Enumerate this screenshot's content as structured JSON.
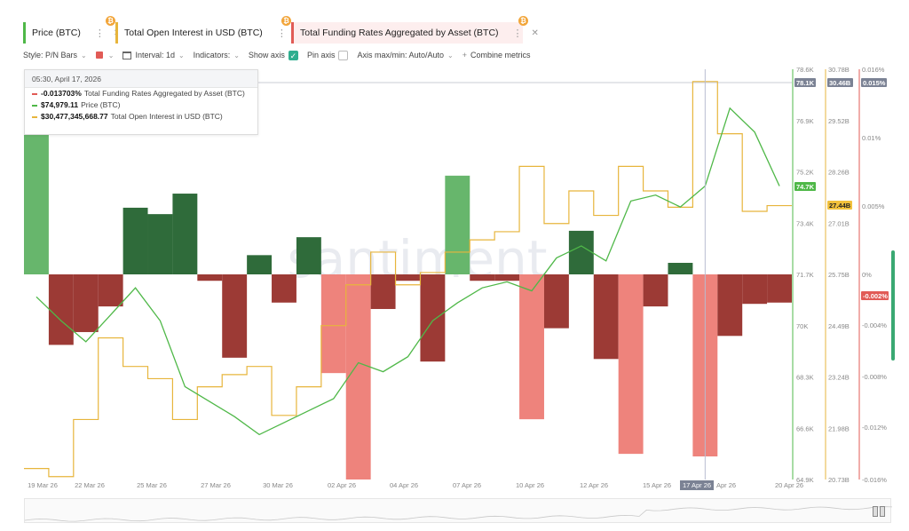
{
  "tabs": [
    {
      "label": "Price (BTC)",
      "badge": "₿"
    },
    {
      "label": "Total Open Interest in USD (BTC)",
      "badge": "₿"
    },
    {
      "label": "Total Funding Rates Aggregated by Asset (BTC)",
      "badge": "₿"
    }
  ],
  "toolbar": {
    "style": "Style: P/N Bars",
    "interval": "Interval: 1d",
    "indicators": "Indicators:",
    "show_axis": "Show axis",
    "pin_axis": "Pin axis",
    "axis_minmax": "Axis max/min: Auto/Auto",
    "combine": "Combine metrics"
  },
  "tooltip": {
    "date": "05:30, April 17, 2026",
    "rows": [
      {
        "value": "-0.013703%",
        "label": "Total Funding Rates Aggregated by Asset (BTC)",
        "color": "#e15b56"
      },
      {
        "value": "$74,979.11",
        "label": "Price (BTC)",
        "color": "#4fb848"
      },
      {
        "value": "$30,477,345,668.77",
        "label": "Total Open Interest in USD (BTC)",
        "color": "#e7b53c"
      }
    ]
  },
  "watermark": "santiment",
  "colors": {
    "price": "#4fb848",
    "oi": "#e7b53c",
    "fr_pos_dark": "#2f6b3a",
    "fr_pos_light": "#67b66c",
    "fr_neg_dark": "#9c3a35",
    "fr_neg_light": "#ee837c"
  },
  "chart_data": {
    "type": "line",
    "x_ticks": [
      "19 Mar 26",
      "22 Mar 26",
      "25 Mar 26",
      "27 Mar 26",
      "30 Mar 26",
      "02 Apr 26",
      "04 Apr 26",
      "07 Apr 26",
      "10 Apr 26",
      "12 Apr 26",
      "15 Apr 26",
      "17 Apr 26",
      "Apr 26",
      "20 Apr 26"
    ],
    "highlight_x_tick": "17 Apr 26",
    "price_axis": {
      "ticks": [
        "78.6K",
        "76.9K",
        "75.2K",
        "73.4K",
        "71.7K",
        "70K",
        "68.3K",
        "66.6K",
        "64.9K"
      ],
      "range": [
        64900,
        78600
      ],
      "last_label": "74.7K",
      "crosshair_label": "78.1K"
    },
    "oi_axis": {
      "ticks": [
        "30.78B",
        "29.52B",
        "28.26B",
        "27.01B",
        "25.75B",
        "24.49B",
        "23.24B",
        "21.98B",
        "20.73B"
      ],
      "range": [
        20.73,
        30.78
      ],
      "last_label": "27.44B",
      "crosshair_label": "30.46B"
    },
    "fr_axis": {
      "ticks": [
        "0.016%",
        "0.01%",
        "0.005%",
        "0%",
        "-0.004%",
        "-0.008%",
        "-0.012%",
        "-0.016%"
      ],
      "range": [
        -0.016,
        0.016
      ],
      "last_label": "-0.002%",
      "crosshair_label": "0.015%"
    },
    "funding_rate_bars": [
      0.016,
      -0.0055,
      -0.0045,
      -0.0025,
      0.0052,
      0.0047,
      0.0063,
      -0.0005,
      -0.0065,
      0.0015,
      -0.0022,
      0.0029,
      -0.0077,
      -0.016,
      -0.0027,
      -0.0005,
      -0.0068,
      0.0077,
      -0.0005,
      -0.0005,
      -0.0113,
      -0.0042,
      0.0034,
      -0.0066,
      -0.014,
      -0.0025,
      0.0009,
      -0.0142,
      -0.0048,
      -0.0023,
      -0.0022
    ],
    "series": [
      {
        "name": "Price (BTC)",
        "values": [
          71000,
          70200,
          69500,
          70400,
          71300,
          70200,
          68000,
          67500,
          67000,
          66400,
          66800,
          67200,
          67600,
          68800,
          68500,
          69000,
          70200,
          70800,
          71300,
          71500,
          71200,
          72300,
          72700,
          72200,
          74200,
          74400,
          74000,
          74700,
          77300,
          76500,
          74700
        ]
      },
      {
        "name": "Total Open Interest in USD (BTC)",
        "values": [
          21.0,
          20.8,
          22.2,
          24.2,
          23.5,
          23.2,
          22.2,
          23.0,
          23.3,
          23.5,
          22.3,
          23.0,
          24.5,
          25.5,
          26.3,
          25.5,
          25.8,
          26.3,
          26.6,
          26.8,
          28.4,
          27.0,
          27.8,
          27.2,
          28.4,
          27.8,
          27.4,
          30.48,
          29.2,
          27.3,
          27.44
        ]
      }
    ]
  }
}
